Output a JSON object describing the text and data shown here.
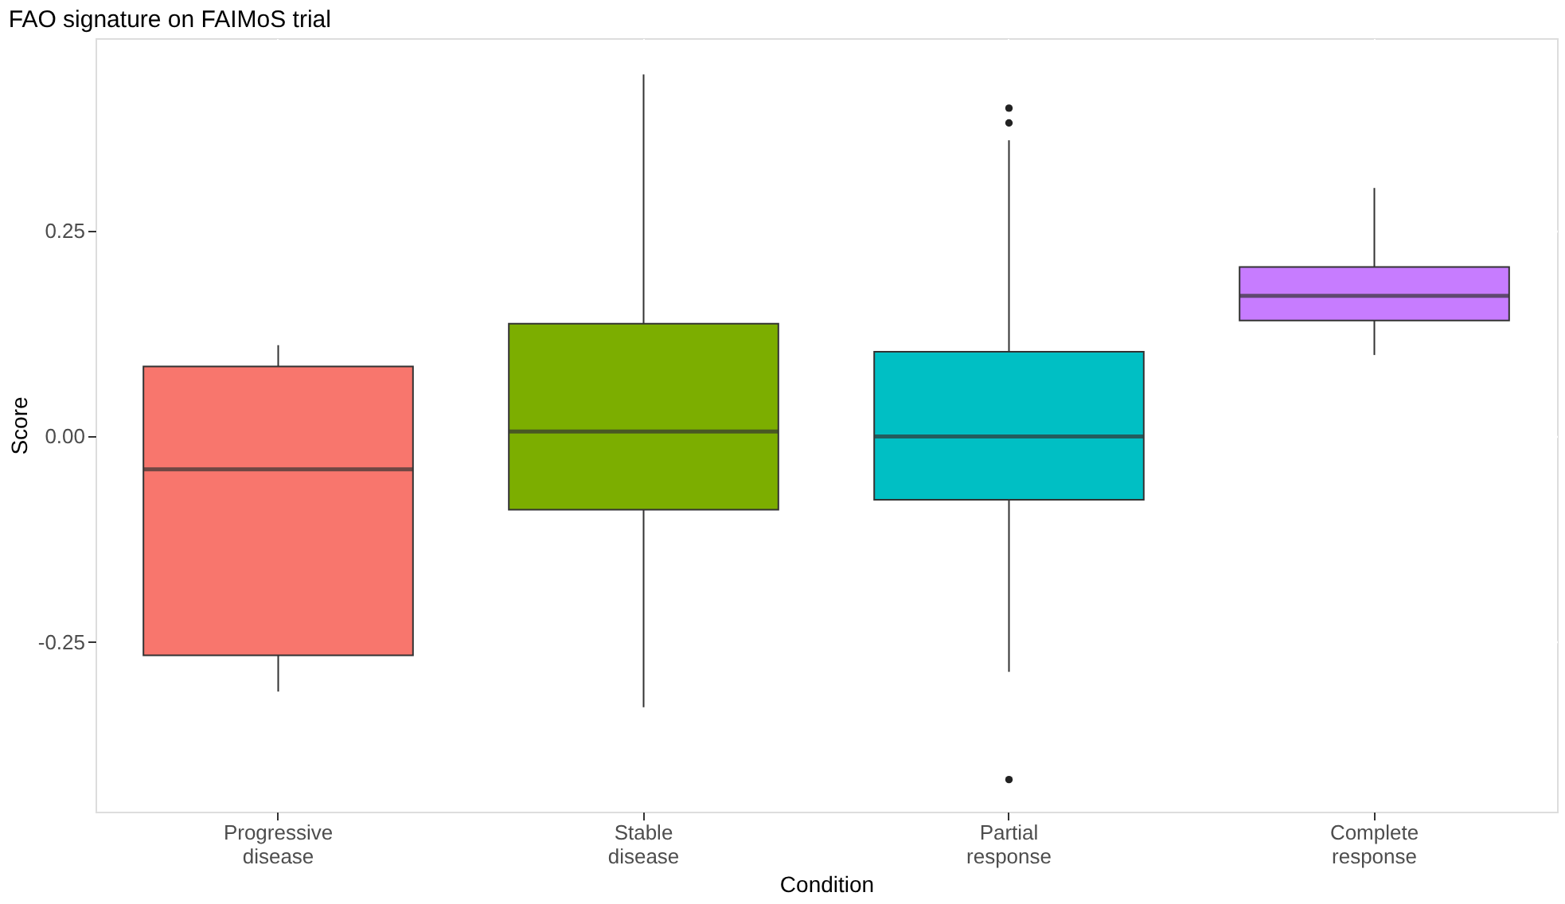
{
  "chart_data": {
    "type": "box",
    "title": "FAO signature on FAIMoS trial",
    "xlabel": "Condition",
    "ylabel": "Score",
    "categories": [
      "Progressive\ndisease",
      "Stable\ndisease",
      "Partial\nresponse",
      "Complete\nresponse"
    ],
    "colors": [
      "#f8766d",
      "#7cae00",
      "#00bfc4",
      "#c77cff"
    ],
    "boxes": [
      {
        "low": -0.31,
        "q1": -0.266,
        "median": -0.04,
        "q3": 0.085,
        "high": 0.111
      },
      {
        "low": -0.329,
        "q1": -0.089,
        "median": 0.006,
        "q3": 0.137,
        "high": 0.44
      },
      {
        "low": -0.286,
        "q1": -0.077,
        "median": 0.0,
        "q3": 0.103,
        "high": 0.36,
        "outliers": [
          0.399,
          0.381,
          -0.417
        ]
      },
      {
        "low": 0.099,
        "q1": 0.141,
        "median": 0.171,
        "q3": 0.206,
        "high": 0.302
      }
    ],
    "ylim": [
      -0.456,
      0.484
    ],
    "yticks": [
      {
        "value": -0.25,
        "label": "-0.25"
      },
      {
        "value": 0,
        "label": "0.00"
      },
      {
        "value": 0.25,
        "label": "0.25"
      }
    ],
    "grid": true
  }
}
